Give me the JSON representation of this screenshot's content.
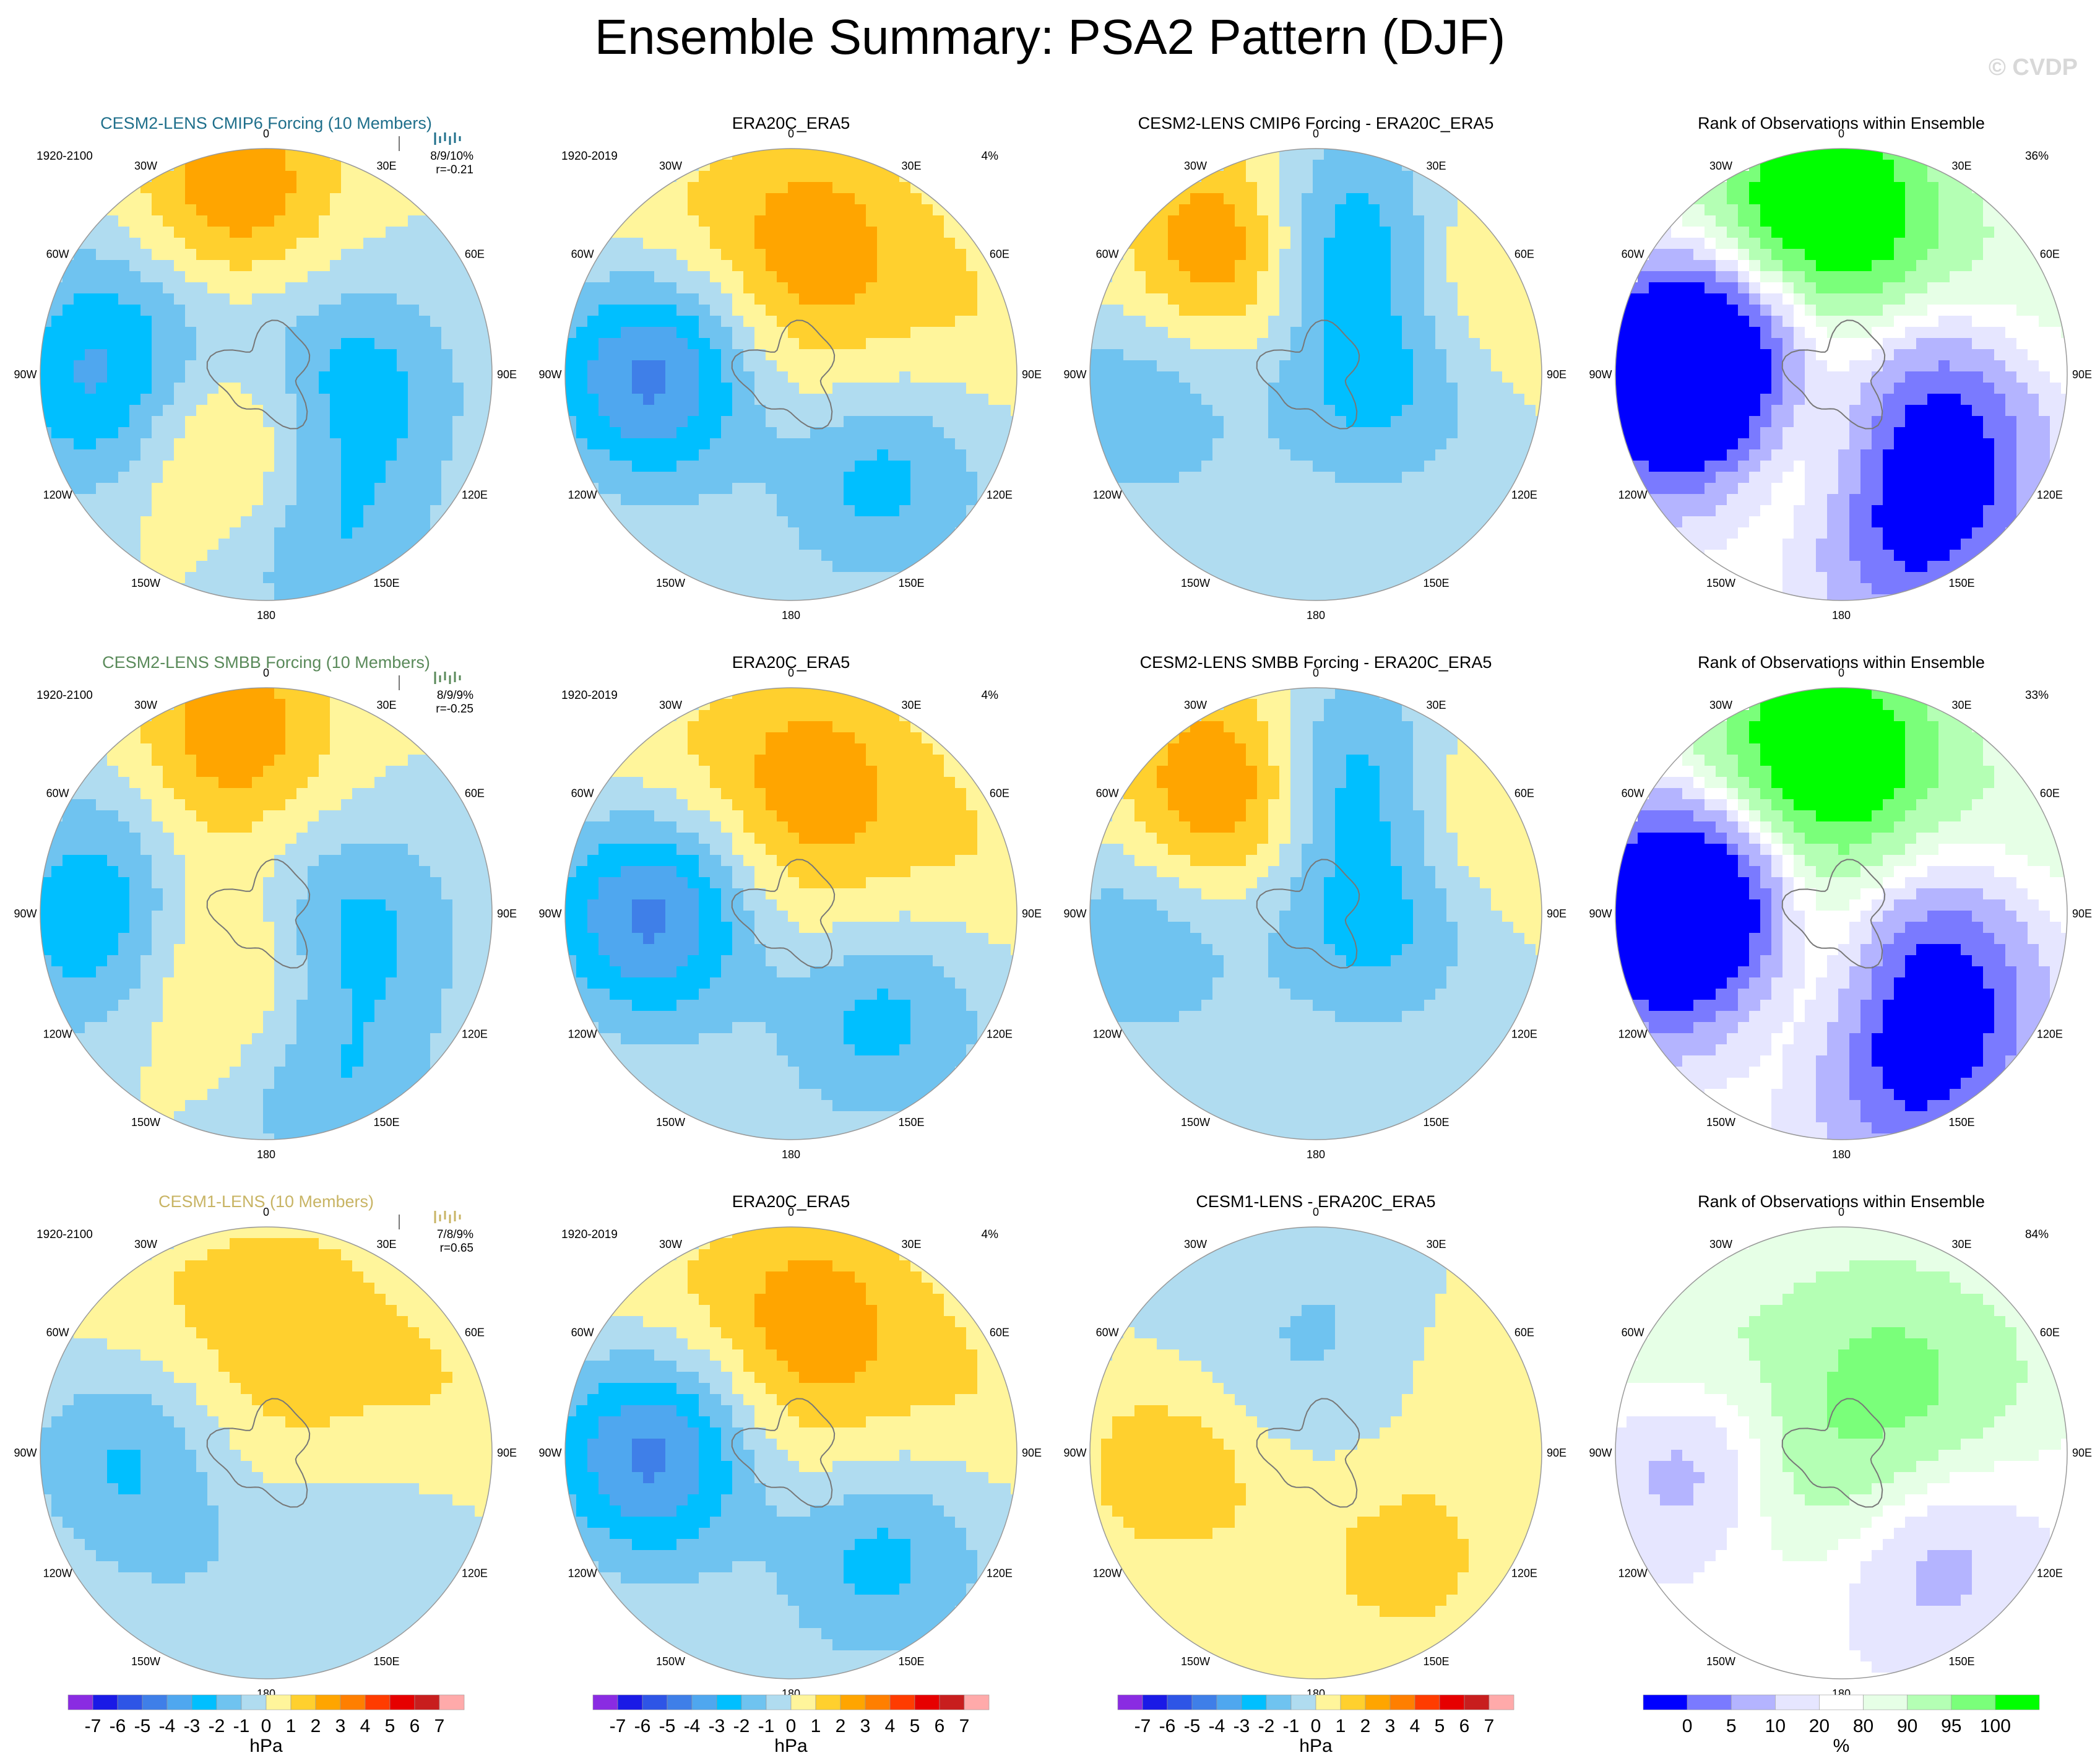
{
  "title": "Ensemble Summary: PSA2 Pattern (DJF)",
  "watermark": "© CVDP",
  "colors": {
    "div_scale": [
      "#8a2be2",
      "#1a1ae6",
      "#2e55e6",
      "#3f7fe8",
      "#4fa7ef",
      "#00bfff",
      "#6fc3f0",
      "#b0dcf0",
      "#fff59b",
      "#ffd02e",
      "#ffa500",
      "#ff7f00",
      "#ff3c00",
      "#e60000",
      "#c81e1e",
      "#ffaaaa"
    ],
    "rank_scale": [
      "#0000ff",
      "#7a7aff",
      "#b4b4ff",
      "#e6e6ff",
      "#ffffff",
      "#e6ffe6",
      "#b4ffb4",
      "#7aff7a",
      "#00ff00"
    ],
    "coast": "#777777"
  },
  "chart_data": {
    "type": "heatmap",
    "projection": "south-polar-stereographic",
    "longitude_labels": [
      "0",
      "30E",
      "60E",
      "90E",
      "120E",
      "150E",
      "180",
      "150W",
      "120W",
      "90W",
      "60W",
      "30W"
    ],
    "rows": [
      {
        "name": "CESM2-LENS CMIP6 Forcing",
        "panels": [
          {
            "title": "CESM2-LENS CMIP6 Forcing (10 Members)",
            "title_color": "#1f6f8b",
            "period": "1920-2100",
            "pct_label": "8/9/10%",
            "corr_label": "r=-0.21",
            "spark_color": "#1f6f8b",
            "blobs": [
              [
                80,
                -10,
                3
              ],
              [
                40,
                100,
                -2.5
              ],
              [
                35,
                -150,
                2.3
              ],
              [
                75,
                -100,
                -2.4
              ],
              [
                80,
                160,
                -2.0
              ],
              [
                70,
                -70,
                -1.6
              ],
              [
                30,
                0,
                -0.6
              ]
            ]
          },
          {
            "title": "ERA20C_ERA5",
            "title_color": "#000000",
            "period": "1920-2019",
            "pct_label": "4%",
            "blobs": [
              [
                60,
                -90,
                -4.5
              ],
              [
                60,
                140,
                -2.4
              ],
              [
                65,
                10,
                2.2
              ],
              [
                10,
                0,
                1.2
              ],
              [
                85,
                70,
                0.9
              ],
              [
                85,
                -40,
                0.8
              ]
            ]
          },
          {
            "title": "CESM2-LENS CMIP6 Forcing - ERA20C_ERA5",
            "title_color": "#000000",
            "blobs": [
              [
                65,
                -30,
                4.2
              ],
              [
                60,
                5,
                -4.0
              ],
              [
                80,
                -100,
                -1.8
              ],
              [
                30,
                90,
                -2.0
              ],
              [
                80,
                60,
                1.5
              ],
              [
                25,
                140,
                -0.5
              ]
            ]
          },
          {
            "title": "Rank of Observations within Ensemble",
            "title_color": "#000000",
            "pct_label": "36%",
            "type": "rank",
            "blobs": [
              [
                60,
                -90,
                -4.5
              ],
              [
                60,
                140,
                -2.4
              ],
              [
                65,
                10,
                2.2
              ],
              [
                10,
                0,
                1.2
              ],
              [
                85,
                70,
                0.9
              ],
              [
                85,
                -40,
                0.8
              ],
              [
                80,
                -10,
                3
              ],
              [
                40,
                100,
                -2.5
              ],
              [
                35,
                -150,
                2.3
              ],
              [
                75,
                -100,
                -2.4
              ],
              [
                80,
                160,
                -2.0
              ],
              [
                70,
                -70,
                -1.6
              ],
              [
                30,
                0,
                -0.6
              ]
            ]
          }
        ]
      },
      {
        "name": "CESM2-LENS SMBB Forcing",
        "panels": [
          {
            "title": "CESM2-LENS SMBB Forcing (10 Members)",
            "title_color": "#5a8a5a",
            "period": "1920-2100",
            "pct_label": "8/9/9%",
            "corr_label": "r=-0.25",
            "spark_color": "#5a8a5a",
            "blobs": [
              [
                80,
                -10,
                2.8
              ],
              [
                40,
                100,
                -2.3
              ],
              [
                35,
                -150,
                2.0
              ],
              [
                75,
                -100,
                -2.3
              ],
              [
                80,
                160,
                -2.0
              ],
              [
                70,
                -70,
                -1.6
              ],
              [
                30,
                0,
                -0.6
              ],
              [
                35,
                -60,
                1.2
              ]
            ]
          },
          {
            "title": "ERA20C_ERA5",
            "title_color": "#000000",
            "period": "1920-2019",
            "pct_label": "4%",
            "blobs": [
              [
                60,
                -90,
                -4.5
              ],
              [
                60,
                140,
                -2.4
              ],
              [
                65,
                10,
                2.2
              ],
              [
                10,
                0,
                1.2
              ],
              [
                85,
                70,
                0.9
              ],
              [
                85,
                -40,
                0.8
              ]
            ]
          },
          {
            "title": "CESM2-LENS SMBB Forcing - ERA20C_ERA5",
            "title_color": "#000000",
            "blobs": [
              [
                65,
                -30,
                4.5
              ],
              [
                60,
                5,
                -3.8
              ],
              [
                80,
                -100,
                -1.8
              ],
              [
                30,
                90,
                -2.0
              ],
              [
                80,
                60,
                1.5
              ],
              [
                25,
                140,
                -0.5
              ]
            ]
          },
          {
            "title": "Rank of Observations within Ensemble",
            "title_color": "#000000",
            "pct_label": "33%",
            "type": "rank",
            "blobs": [
              [
                60,
                -90,
                -4.5
              ],
              [
                60,
                140,
                -2.4
              ],
              [
                65,
                10,
                2.2
              ],
              [
                10,
                0,
                1.2
              ],
              [
                85,
                70,
                0.9
              ],
              [
                85,
                -40,
                0.8
              ],
              [
                80,
                -10,
                2.8
              ],
              [
                40,
                100,
                -2.3
              ],
              [
                35,
                -150,
                2.0
              ],
              [
                75,
                -100,
                -2.3
              ],
              [
                80,
                160,
                -2.0
              ],
              [
                70,
                -70,
                -1.6
              ],
              [
                30,
                0,
                -0.6
              ],
              [
                35,
                -60,
                1.2
              ]
            ]
          }
        ]
      },
      {
        "name": "CESM1-LENS",
        "panels": [
          {
            "title": "CESM1-LENS (10 Members)",
            "title_color": "#c8b464",
            "period": "1920-2100",
            "pct_label": "7/8/9%",
            "corr_label": "r=0.65",
            "spark_color": "#c8b464",
            "blobs": [
              [
                60,
                -90,
                -2.2
              ],
              [
                60,
                140,
                -1.0
              ],
              [
                65,
                10,
                1.4
              ],
              [
                10,
                0,
                0.9
              ],
              [
                85,
                70,
                0.9
              ],
              [
                85,
                -40,
                0.8
              ],
              [
                60,
                -150,
                -0.6
              ]
            ]
          },
          {
            "title": "ERA20C_ERA5",
            "title_color": "#000000",
            "period": "1920-2019",
            "pct_label": "4%",
            "blobs": [
              [
                60,
                -90,
                -4.5
              ],
              [
                60,
                140,
                -2.4
              ],
              [
                65,
                10,
                2.2
              ],
              [
                10,
                0,
                1.2
              ],
              [
                85,
                70,
                0.9
              ],
              [
                85,
                -40,
                0.8
              ]
            ]
          },
          {
            "title": "CESM1-LENS - ERA20C_ERA5",
            "title_color": "#000000",
            "blobs": [
              [
                60,
                -90,
                2.3
              ],
              [
                60,
                140,
                1.4
              ],
              [
                65,
                10,
                -0.8
              ],
              [
                20,
                -20,
                -0.6
              ],
              [
                80,
                60,
                0.6
              ],
              [
                60,
                -60,
                -0.9
              ]
            ]
          },
          {
            "title": "Rank of Observations within Ensemble",
            "title_color": "#000000",
            "pct_label": "84%",
            "type": "rank",
            "blobs": [
              [
                60,
                -90,
                -2.3
              ],
              [
                60,
                140,
                -1.4
              ],
              [
                65,
                10,
                0.8
              ],
              [
                80,
                -60,
                1.5
              ],
              [
                70,
                60,
                0.9
              ],
              [
                20,
                -120,
                1.8
              ],
              [
                30,
                40,
                1.2
              ]
            ]
          }
        ]
      }
    ],
    "colorbars": [
      {
        "kind": "div",
        "labels": [
          "-7",
          "-6",
          "-5",
          "-4",
          "-3",
          "-2",
          "-1",
          "0",
          "1",
          "2",
          "3",
          "4",
          "5",
          "6",
          "7"
        ],
        "unit": "hPa"
      },
      {
        "kind": "div",
        "labels": [
          "-7",
          "-6",
          "-5",
          "-4",
          "-3",
          "-2",
          "-1",
          "0",
          "1",
          "2",
          "3",
          "4",
          "5",
          "6",
          "7"
        ],
        "unit": "hPa"
      },
      {
        "kind": "div",
        "labels": [
          "-7",
          "-6",
          "-5",
          "-4",
          "-3",
          "-2",
          "-1",
          "0",
          "1",
          "2",
          "3",
          "4",
          "5",
          "6",
          "7"
        ],
        "unit": "hPa"
      },
      {
        "kind": "rank",
        "labels": [
          "0",
          "5",
          "10",
          "20",
          "80",
          "90",
          "95",
          "100"
        ],
        "unit": "%"
      }
    ]
  }
}
